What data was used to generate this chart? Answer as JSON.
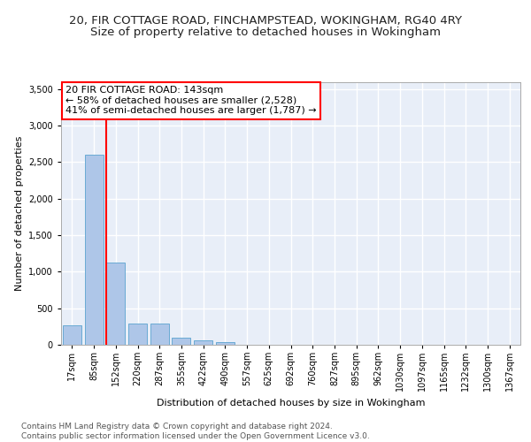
{
  "title1": "20, FIR COTTAGE ROAD, FINCHAMPSTEAD, WOKINGHAM, RG40 4RY",
  "title2": "Size of property relative to detached houses in Wokingham",
  "xlabel": "Distribution of detached houses by size in Wokingham",
  "ylabel": "Number of detached properties",
  "categories": [
    "17sqm",
    "85sqm",
    "152sqm",
    "220sqm",
    "287sqm",
    "355sqm",
    "422sqm",
    "490sqm",
    "557sqm",
    "625sqm",
    "692sqm",
    "760sqm",
    "827sqm",
    "895sqm",
    "962sqm",
    "1030sqm",
    "1097sqm",
    "1165sqm",
    "1232sqm",
    "1300sqm",
    "1367sqm"
  ],
  "values": [
    270,
    2600,
    1120,
    290,
    290,
    100,
    65,
    40,
    0,
    0,
    0,
    0,
    0,
    0,
    0,
    0,
    0,
    0,
    0,
    0,
    0
  ],
  "bar_color": "#aec6e8",
  "bar_edge_color": "#6aaad4",
  "vline_color": "red",
  "vline_x": 1.58,
  "annotation_text_line1": "20 FIR COTTAGE ROAD: 143sqm",
  "annotation_text_line2": "← 58% of detached houses are smaller (2,528)",
  "annotation_text_line3": "41% of semi-detached houses are larger (1,787) →",
  "ylim": [
    0,
    3600
  ],
  "yticks": [
    0,
    500,
    1000,
    1500,
    2000,
    2500,
    3000,
    3500
  ],
  "footer_text": "Contains HM Land Registry data © Crown copyright and database right 2024.\nContains public sector information licensed under the Open Government Licence v3.0.",
  "bg_color": "#ffffff",
  "plot_bg_color": "#e8eef8",
  "grid_color": "#ffffff",
  "title1_fontsize": 9.5,
  "title2_fontsize": 9.5,
  "axis_label_fontsize": 8,
  "tick_fontsize": 7,
  "annotation_fontsize": 8,
  "footer_fontsize": 6.5
}
